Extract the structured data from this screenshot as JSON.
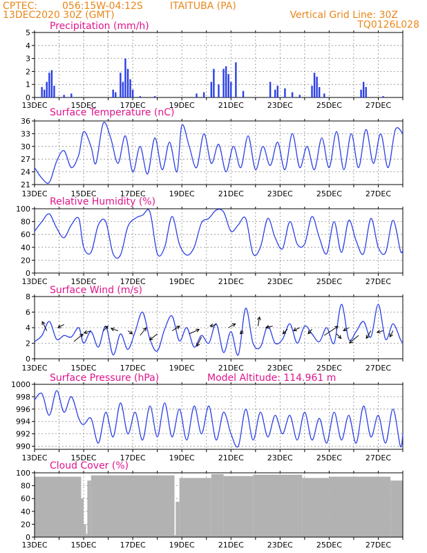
{
  "header": {
    "org": "CPTEC:",
    "coords": "056:15W-04:12S",
    "station": "ITAITUBA (PA)",
    "run": "13DEC2020 30Z (GMT)",
    "gridline": "Vertical Grid Line: 30Z",
    "code": "TQ0126L028"
  },
  "x_labels": [
    "13DEC",
    "15DEC",
    "17DEC",
    "19DEC",
    "21DEC",
    "23DEC",
    "25DEC",
    "27DEC"
  ],
  "colors": {
    "line": "#2a3fe6",
    "bar": "#2a3fe6",
    "cloud": "#b2b2b2",
    "header": "#e8861a",
    "title": "#e0148c"
  },
  "chart_data": [
    {
      "type": "bar",
      "title": "Precipitation (mm/h)",
      "ylim": [
        0,
        5
      ],
      "yticks": [
        "0",
        "1",
        "2",
        "3",
        "4",
        "5"
      ],
      "x_range_days": [
        13,
        28
      ],
      "points": [
        [
          13.3,
          0.8
        ],
        [
          13.4,
          0.6
        ],
        [
          13.5,
          1.2
        ],
        [
          13.6,
          1.9
        ],
        [
          13.7,
          2.1
        ],
        [
          13.8,
          0.9
        ],
        [
          14.2,
          0.2
        ],
        [
          14.5,
          0.3
        ],
        [
          16.2,
          0.6
        ],
        [
          16.3,
          0.4
        ],
        [
          16.5,
          1.9
        ],
        [
          16.6,
          1.2
        ],
        [
          16.7,
          3.0
        ],
        [
          16.8,
          2.2
        ],
        [
          16.9,
          1.4
        ],
        [
          17.0,
          0.6
        ],
        [
          17.3,
          0.1
        ],
        [
          17.9,
          0.1
        ],
        [
          19.6,
          0.3
        ],
        [
          19.9,
          0.4
        ],
        [
          20.2,
          1.2
        ],
        [
          20.3,
          2.2
        ],
        [
          20.5,
          1.0
        ],
        [
          20.7,
          2.2
        ],
        [
          20.8,
          2.4
        ],
        [
          20.9,
          1.8
        ],
        [
          21.0,
          1.2
        ],
        [
          21.2,
          2.7
        ],
        [
          21.5,
          0.5
        ],
        [
          22.6,
          1.2
        ],
        [
          22.8,
          0.6
        ],
        [
          22.9,
          0.9
        ],
        [
          23.2,
          0.7
        ],
        [
          23.5,
          0.4
        ],
        [
          23.8,
          0.2
        ],
        [
          24.3,
          0.9
        ],
        [
          24.4,
          1.9
        ],
        [
          24.5,
          1.6
        ],
        [
          24.6,
          0.8
        ],
        [
          24.8,
          0.3
        ],
        [
          26.3,
          0.6
        ],
        [
          26.4,
          1.2
        ],
        [
          26.5,
          0.8
        ],
        [
          27.2,
          0.1
        ]
      ]
    },
    {
      "type": "line",
      "title": "Surface Temperature (nC)",
      "ylim": [
        21,
        36
      ],
      "yticks": [
        "21",
        "24",
        "27",
        "30",
        "33",
        "36"
      ],
      "x_range_days": [
        13,
        28
      ],
      "x": [
        13.0,
        13.3,
        13.6,
        13.9,
        14.2,
        14.5,
        14.8,
        15.0,
        15.3,
        15.5,
        15.8,
        16.1,
        16.4,
        16.7,
        17.0,
        17.3,
        17.6,
        17.9,
        18.2,
        18.5,
        18.8,
        19.0,
        19.3,
        19.6,
        19.9,
        20.2,
        20.5,
        20.8,
        21.1,
        21.4,
        21.7,
        22.0,
        22.3,
        22.6,
        22.9,
        23.2,
        23.5,
        23.8,
        24.1,
        24.4,
        24.7,
        25.0,
        25.3,
        25.6,
        25.9,
        26.2,
        26.5,
        26.8,
        27.1,
        27.4,
        27.7,
        28.0
      ],
      "values": [
        25.0,
        22.5,
        21.5,
        26.5,
        29.0,
        25.0,
        28.0,
        33.5,
        30.0,
        26.0,
        35.5,
        32.0,
        26.0,
        32.5,
        24.0,
        30.0,
        23.5,
        32.0,
        24.5,
        31.0,
        24.0,
        35.0,
        30.0,
        25.0,
        33.0,
        26.0,
        30.5,
        24.0,
        30.0,
        25.0,
        32.5,
        24.5,
        30.0,
        25.5,
        31.0,
        24.5,
        33.0,
        25.0,
        30.0,
        24.5,
        32.0,
        25.0,
        33.5,
        24.5,
        33.0,
        25.0,
        34.0,
        26.0,
        33.0,
        25.0,
        34.0,
        33.0
      ]
    },
    {
      "type": "line",
      "title": "Relative Humidity (%)",
      "ylim": [
        0,
        100
      ],
      "yticks": [
        "0",
        "20",
        "40",
        "60",
        "80",
        "100"
      ],
      "x_range_days": [
        13,
        28
      ],
      "x": [
        13.0,
        13.3,
        13.6,
        13.9,
        14.2,
        14.5,
        14.8,
        15.0,
        15.3,
        15.6,
        15.9,
        16.2,
        16.5,
        16.8,
        17.1,
        17.4,
        17.7,
        18.0,
        18.3,
        18.6,
        18.9,
        19.2,
        19.5,
        19.8,
        20.1,
        20.4,
        20.7,
        21.0,
        21.3,
        21.6,
        21.9,
        22.2,
        22.5,
        22.8,
        23.1,
        23.4,
        23.7,
        24.0,
        24.3,
        24.6,
        24.9,
        25.2,
        25.5,
        25.8,
        26.1,
        26.4,
        26.7,
        27.0,
        27.3,
        27.6,
        27.9,
        28.0
      ],
      "values": [
        65,
        80,
        92,
        70,
        55,
        75,
        85,
        40,
        32,
        75,
        80,
        30,
        28,
        72,
        85,
        90,
        95,
        30,
        40,
        88,
        45,
        28,
        40,
        78,
        85,
        98,
        95,
        65,
        75,
        85,
        30,
        40,
        85,
        55,
        38,
        80,
        45,
        45,
        88,
        55,
        30,
        80,
        32,
        82,
        50,
        30,
        85,
        40,
        32,
        82,
        35,
        35
      ]
    },
    {
      "type": "line",
      "title": "Surface Wind (m/s)",
      "ylim": [
        0,
        8
      ],
      "yticks": [
        "0",
        "2",
        "4",
        "6",
        "8"
      ],
      "x_range_days": [
        13,
        28
      ],
      "x": [
        13.0,
        13.3,
        13.6,
        13.9,
        14.2,
        14.5,
        14.8,
        15.0,
        15.3,
        15.6,
        15.9,
        16.2,
        16.5,
        16.8,
        17.1,
        17.4,
        17.7,
        18.0,
        18.3,
        18.6,
        18.9,
        19.2,
        19.5,
        19.8,
        20.1,
        20.4,
        20.7,
        21.0,
        21.3,
        21.6,
        21.9,
        22.2,
        22.5,
        22.8,
        23.1,
        23.4,
        23.7,
        24.0,
        24.3,
        24.6,
        24.9,
        25.2,
        25.5,
        25.8,
        26.1,
        26.4,
        26.7,
        27.0,
        27.3,
        27.6,
        27.9,
        28.0
      ],
      "values": [
        2.2,
        3.0,
        4.8,
        2.5,
        3.0,
        2.8,
        4.0,
        2.0,
        3.5,
        1.5,
        4.2,
        0.5,
        3.2,
        1.2,
        3.5,
        6.0,
        2.5,
        1.0,
        3.8,
        5.5,
        2.3,
        4.0,
        1.5,
        3.0,
        2.0,
        4.5,
        0.8,
        3.5,
        0.5,
        6.5,
        2.0,
        1.5,
        4.2,
        2.0,
        2.5,
        4.5,
        2.0,
        4.2,
        3.2,
        2.2,
        4.0,
        2.0,
        7.0,
        2.5,
        3.5,
        4.8,
        2.8,
        7.0,
        2.5,
        4.5,
        2.5,
        2.0
      ],
      "arrows": [
        [
          13.5,
          3.6,
          -3.0,
          6.0
        ],
        [
          14.2,
          4.4,
          -4.0,
          -2.0
        ],
        [
          14.6,
          2.2,
          6.0,
          5.0
        ],
        [
          15.3,
          3.6,
          -4.5,
          -1.5
        ],
        [
          15.8,
          3.6,
          3.0,
          3.0
        ],
        [
          16.4,
          3.6,
          -4.5,
          1.5
        ],
        [
          16.8,
          3.6,
          3.0,
          -2.0
        ],
        [
          17.3,
          3.0,
          4.0,
          5.0
        ],
        [
          18.0,
          3.2,
          -5.0,
          -4.0
        ],
        [
          18.6,
          3.6,
          5.0,
          3.0
        ],
        [
          19.3,
          3.2,
          6.5,
          3.0
        ],
        [
          19.8,
          2.8,
          -3.0,
          -6.0
        ],
        [
          20.4,
          4.4,
          -4.0,
          -1.0
        ],
        [
          20.9,
          4.0,
          4.5,
          2.5
        ],
        [
          21.5,
          3.6,
          -2.0,
          -2.0
        ],
        [
          22.1,
          4.2,
          1.0,
          6.0
        ],
        [
          22.7,
          4.2,
          -4.5,
          -1.0
        ],
        [
          23.3,
          3.8,
          -3.0,
          -3.0
        ],
        [
          23.8,
          4.0,
          -4.0,
          -2.0
        ],
        [
          24.3,
          3.8,
          -2.5,
          -3.0
        ],
        [
          24.8,
          3.0,
          9.0,
          6.0
        ],
        [
          25.3,
          3.2,
          3.0,
          -3.0
        ],
        [
          25.8,
          4.0,
          -3.5,
          -2.0
        ],
        [
          26.2,
          3.0,
          -6.0,
          -5.0
        ],
        [
          26.7,
          3.6,
          -3.0,
          -5.0
        ],
        [
          27.2,
          3.6,
          -4.0,
          -1.0
        ],
        [
          27.6,
          3.6,
          -2.0,
          -4.0
        ]
      ]
    },
    {
      "type": "line",
      "title": "Surface Pressure (hPa)",
      "annotation": "Model Altitude: 114.961 m",
      "ylim": [
        989.5,
        1000
      ],
      "yticks": [
        "990",
        "992",
        "994",
        "996",
        "998",
        "1000"
      ],
      "x_range_days": [
        13,
        28
      ],
      "x": [
        13.0,
        13.3,
        13.6,
        13.9,
        14.2,
        14.5,
        14.8,
        15.0,
        15.3,
        15.6,
        15.9,
        16.2,
        16.5,
        16.8,
        17.1,
        17.4,
        17.7,
        18.0,
        18.3,
        18.6,
        18.9,
        19.2,
        19.5,
        19.8,
        20.1,
        20.4,
        20.7,
        21.0,
        21.3,
        21.6,
        21.9,
        22.2,
        22.5,
        22.8,
        23.1,
        23.4,
        23.7,
        24.0,
        24.3,
        24.6,
        24.9,
        25.2,
        25.5,
        25.8,
        26.1,
        26.4,
        26.7,
        27.0,
        27.3,
        27.6,
        27.9,
        28.0
      ],
      "values": [
        997.5,
        998.5,
        995.0,
        999.0,
        995.5,
        998.0,
        994.5,
        993.5,
        994.5,
        990.5,
        995.5,
        991.5,
        997.0,
        992.0,
        995.5,
        991.0,
        996.5,
        991.5,
        997.0,
        991.5,
        996.0,
        991.0,
        996.5,
        992.0,
        996.5,
        991.0,
        995.5,
        992.0,
        990.0,
        996.0,
        991.0,
        995.5,
        991.5,
        995.0,
        992.0,
        995.0,
        991.0,
        995.5,
        991.0,
        994.5,
        990.5,
        995.5,
        991.0,
        995.0,
        990.5,
        996.5,
        991.5,
        995.0,
        990.5,
        996.0,
        990.0,
        992.0
      ]
    },
    {
      "type": "bar",
      "title": "Cloud Cover (%)",
      "ylim": [
        0,
        100
      ],
      "yticks": [
        "0",
        "20",
        "40",
        "60",
        "80",
        "100"
      ],
      "x_range_days": [
        13,
        28
      ],
      "segments": [
        [
          13.0,
          14.9,
          94
        ],
        [
          14.9,
          15.0,
          60
        ],
        [
          15.0,
          15.1,
          20
        ],
        [
          15.1,
          15.15,
          5
        ],
        [
          15.15,
          15.3,
          88
        ],
        [
          15.3,
          18.7,
          96
        ],
        [
          18.7,
          18.75,
          3
        ],
        [
          18.75,
          18.9,
          55
        ],
        [
          18.9,
          20.2,
          92
        ],
        [
          20.2,
          20.7,
          98
        ],
        [
          20.7,
          21.9,
          95
        ],
        [
          21.9,
          23.9,
          97
        ],
        [
          23.9,
          25.0,
          92
        ],
        [
          25.0,
          27.5,
          94
        ],
        [
          27.5,
          28.0,
          88
        ]
      ]
    }
  ]
}
